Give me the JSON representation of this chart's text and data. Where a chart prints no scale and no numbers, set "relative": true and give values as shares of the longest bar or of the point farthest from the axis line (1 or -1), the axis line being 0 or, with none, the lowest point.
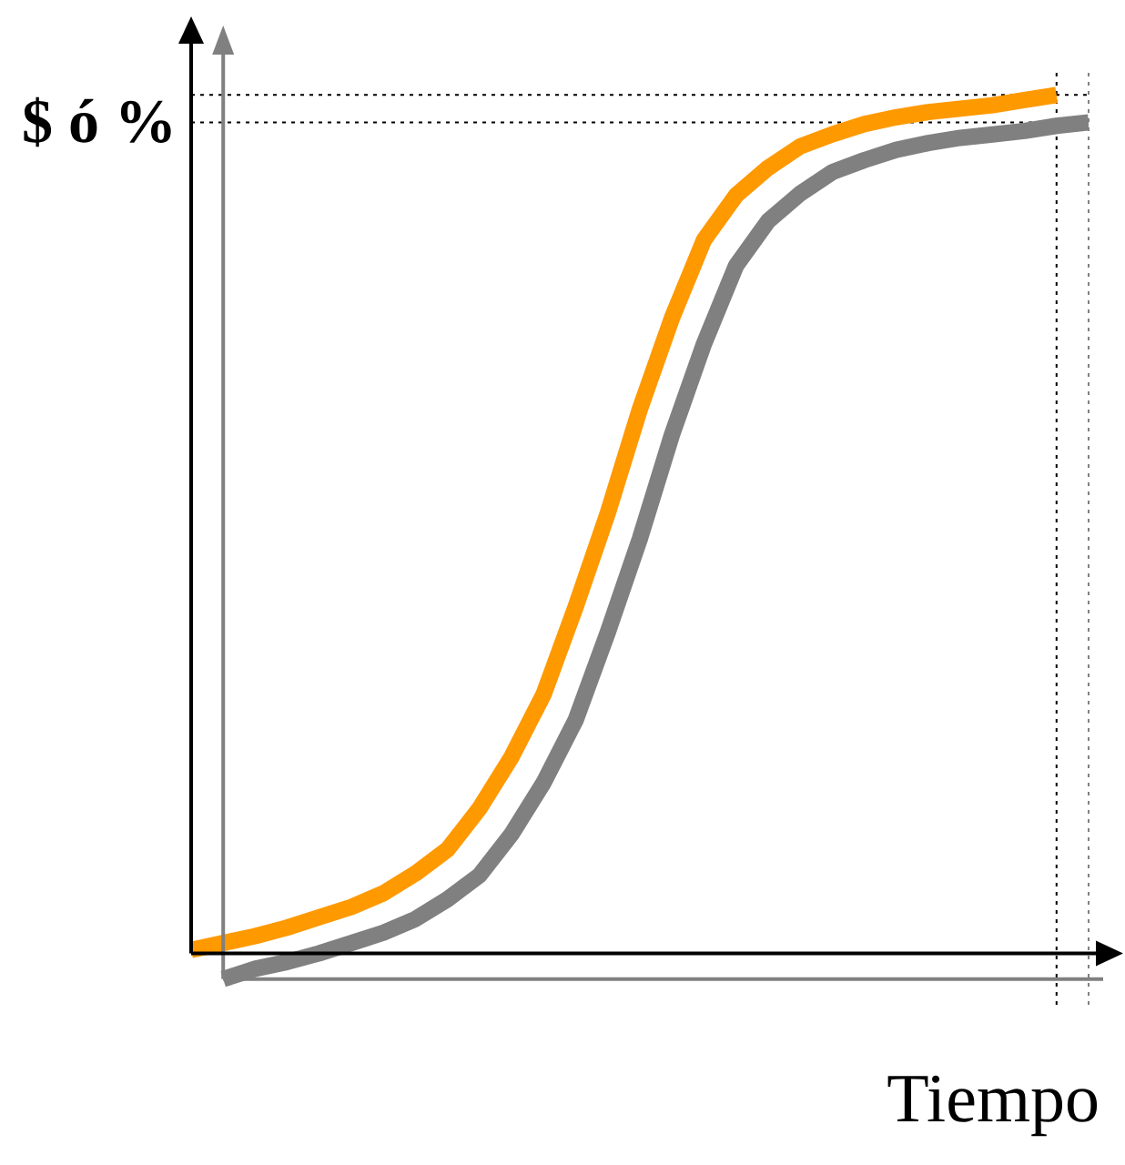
{
  "chart_data": {
    "type": "line",
    "relative": true,
    "ylabel": "$ ó %",
    "xlabel": "Tiempo",
    "categories": [
      null,
      null,
      null,
      null,
      null,
      null,
      null,
      null,
      null,
      null,
      null,
      null,
      null,
      null,
      null,
      null,
      null,
      null,
      null,
      null,
      null,
      null,
      null,
      null,
      null,
      null,
      null,
      null,
      null
    ],
    "series": [
      {
        "color": "#ff9900",
        "values": [
          0.004,
          0.012,
          0.02,
          0.03,
          0.042,
          0.054,
          0.07,
          0.093,
          0.121,
          0.169,
          0.229,
          0.302,
          0.404,
          0.513,
          0.634,
          0.74,
          0.831,
          0.883,
          0.915,
          0.94,
          0.954,
          0.966,
          0.974,
          0.98,
          0.984,
          0.988,
          0.994,
          1,
          null
        ]
      },
      {
        "color": "#808080",
        "values": [
          null,
          -0.03,
          -0.018,
          -0.01,
          0.0,
          0.012,
          0.024,
          0.04,
          0.063,
          0.091,
          0.139,
          0.199,
          0.272,
          0.374,
          0.483,
          0.604,
          0.71,
          0.801,
          0.853,
          0.885,
          0.91,
          0.924,
          0.936,
          0.944,
          0.95,
          0.954,
          0.958,
          0.964,
          0.968
        ]
      }
    ],
    "ref_lines": [
      {
        "axis": "y",
        "value": 1,
        "color": "#000000",
        "line_style": "dotted"
      },
      {
        "axis": "y",
        "value": 0.968,
        "color": "#000000",
        "line_style": "dotted"
      }
    ],
    "marker": "none",
    "line_style": "solid"
  }
}
